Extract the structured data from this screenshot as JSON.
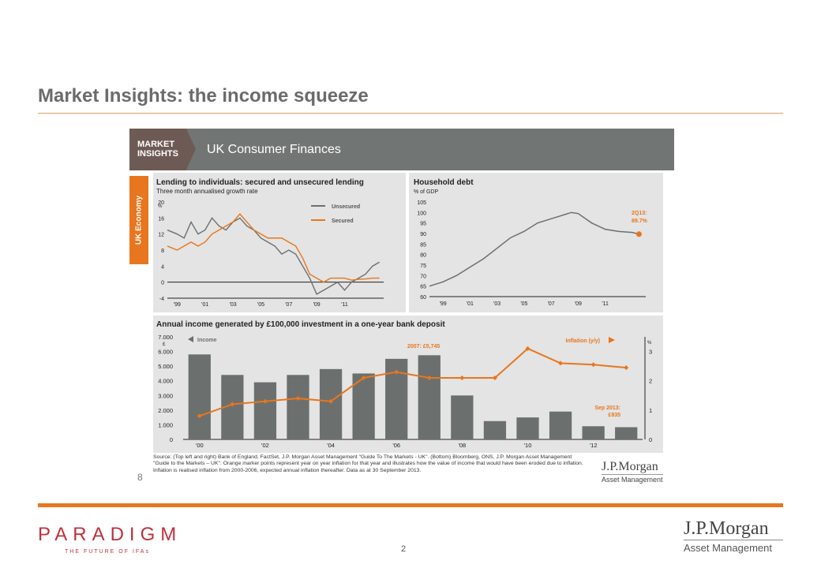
{
  "slide": {
    "title": "Market Insights: the income squeeze",
    "page_number": "2"
  },
  "card": {
    "badge_line1": "MARKET",
    "badge_line2": "INSIGHTS",
    "title": "UK Consumer Finances",
    "tab_label": "UK Economy",
    "page_label": "8",
    "source": "Source: (Top left and right) Bank of England, FactSet, J.P. Morgan Asset Management \"Guide To The Markets - UK\". (Bottom) Bloomberg, ONS, J.P. Morgan Asset Management \"Guide to the Markets – UK\". Orange marker points represent year on year inflation for that year and illustrates how the value of income that would have been eroded due to inflation. Inflation is realised inflation from 2000-2006, expected annual inflation thereafter. Data as at 30 September 2013.",
    "jpm_logo": "J.P.Morgan",
    "jpm_sub": "Asset Management"
  },
  "footer": {
    "paradigm": "PARADIGM",
    "paradigm_sub": "THE FUTURE OF IFAs",
    "jpm_logo": "J.P.Morgan",
    "jpm_sub": "Asset Management"
  },
  "chart_data": [
    {
      "type": "line",
      "title": "Lending to individuals: secured and unsecured lending",
      "subtitle": "Three month annualised growth rate",
      "ylabel": "%",
      "ylim": [
        -4,
        20
      ],
      "yticks": [
        -4,
        0,
        4,
        8,
        12,
        16,
        20
      ],
      "xticks": [
        "'99",
        "'01",
        "'03",
        "'05",
        "'07",
        "'09",
        "'11"
      ],
      "series": [
        {
          "name": "Unsecured",
          "color": "#6b706e",
          "x": [
            1998.3,
            1999.0,
            1999.5,
            2000.0,
            2000.5,
            2001.0,
            2001.5,
            2002.0,
            2002.5,
            2003.0,
            2003.5,
            2004.0,
            2004.5,
            2005.0,
            2005.5,
            2006.0,
            2006.5,
            2007.0,
            2007.5,
            2008.0,
            2008.5,
            2009.0,
            2009.5,
            2010.0,
            2010.5,
            2011.0,
            2011.5,
            2012.0,
            2012.5,
            2013.0,
            2013.5
          ],
          "values": [
            13,
            12,
            11,
            15,
            12,
            13,
            16,
            14,
            13,
            15,
            16,
            14,
            13,
            11,
            10,
            9,
            7,
            8,
            7,
            4,
            1,
            -3,
            -2,
            -1,
            0,
            -2,
            0,
            1,
            2,
            4,
            5
          ]
        },
        {
          "name": "Secured",
          "color": "#e8761e",
          "x": [
            1998.3,
            1999.0,
            1999.5,
            2000.0,
            2000.5,
            2001.0,
            2001.5,
            2002.0,
            2002.5,
            2003.0,
            2003.5,
            2004.0,
            2004.5,
            2005.0,
            2005.5,
            2006.0,
            2006.5,
            2007.0,
            2007.5,
            2008.0,
            2008.5,
            2009.0,
            2009.5,
            2010.0,
            2010.5,
            2011.0,
            2011.5,
            2012.0,
            2012.5,
            2013.0,
            2013.5
          ],
          "values": [
            9,
            8,
            9,
            10,
            9,
            10,
            12,
            13,
            14,
            15,
            17,
            15,
            13,
            12,
            11,
            11,
            11,
            10,
            9,
            6,
            2,
            1,
            0,
            1,
            1,
            1,
            0.5,
            0.7,
            0.8,
            1,
            1
          ]
        }
      ]
    },
    {
      "type": "line",
      "title": "Household debt",
      "subtitle": "% of GDP",
      "ylim": [
        60,
        105
      ],
      "yticks": [
        60,
        65,
        70,
        75,
        80,
        85,
        90,
        95,
        100,
        105
      ],
      "xticks": [
        "'99",
        "'01",
        "'03",
        "'05",
        "'07",
        "'09",
        "'11"
      ],
      "annotation": "2Q13: 89.7%",
      "series": [
        {
          "name": "",
          "color": "#6b706e",
          "x": [
            1998.0,
            1999.0,
            2000.0,
            2001.0,
            2002.0,
            2003.0,
            2004.0,
            2005.0,
            2006.0,
            2007.0,
            2007.5,
            2008.0,
            2008.5,
            2009.0,
            2010.0,
            2011.0,
            2012.0,
            2013.0,
            2013.5
          ],
          "values": [
            65,
            67,
            70,
            74,
            78,
            83,
            88,
            91,
            95,
            97,
            98,
            99,
            100,
            99.5,
            95,
            92,
            91,
            90.5,
            89.7
          ]
        }
      ]
    },
    {
      "type": "bar",
      "title": "Annual income generated by £100,000 investment in a one-year bank deposit",
      "categories": [
        "2000",
        "2001",
        "2002",
        "2003",
        "2004",
        "2005",
        "2006",
        "2007",
        "2008",
        "2009",
        "2010",
        "2011",
        "2012",
        "2013"
      ],
      "xticks": [
        "'00",
        "'02",
        "'04",
        "'06",
        "'08",
        "'10",
        "'12"
      ],
      "y_left": {
        "label": "£",
        "ylim": [
          0,
          7000
        ],
        "ticks": [
          "0",
          "1.000",
          "2.000",
          "3.000",
          "4.000",
          "5.000",
          "6.000",
          "7.000"
        ]
      },
      "y_right": {
        "label": "%",
        "ylim": [
          0,
          3.5
        ],
        "ticks": [
          "0",
          "1",
          "2",
          "3"
        ]
      },
      "series": [
        {
          "name": "Income",
          "axis": "left",
          "color": "#6b706e",
          "values": [
            5800,
            4400,
            3900,
            4400,
            4800,
            4500,
            5500,
            5745,
            3000,
            1250,
            1500,
            1900,
            900,
            835
          ]
        },
        {
          "name": "Inflation (y/y)",
          "axis": "right",
          "color": "#e8761e",
          "values": [
            0.8,
            1.2,
            1.3,
            1.4,
            1.3,
            2.1,
            2.3,
            2.1,
            2.1,
            2.1,
            3.1,
            2.6,
            2.55,
            2.45
          ]
        }
      ],
      "annotations": [
        "2007: £5,745",
        "Sep 2013: £835"
      ]
    }
  ]
}
